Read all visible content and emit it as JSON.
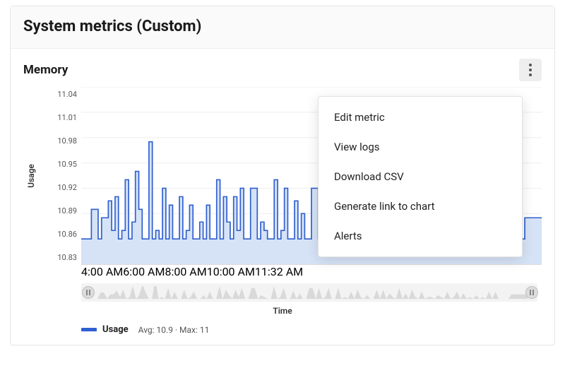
{
  "header": {
    "title": "System metrics (Custom)"
  },
  "panel": {
    "title": "Memory"
  },
  "menu": {
    "items": [
      "Edit metric",
      "View logs",
      "Download CSV",
      "Generate link to chart",
      "Alerts"
    ]
  },
  "chart": {
    "type": "line-area",
    "y_label": "Usage",
    "x_label": "Time",
    "ylim": [
      10.83,
      11.04
    ],
    "ytick_step": 0.03,
    "yticks": [
      "11.04",
      "11.01",
      "10.98",
      "10.95",
      "10.92",
      "10.89",
      "10.86",
      "10.83"
    ],
    "x_domain_hours": [
      3.5,
      11.533
    ],
    "xticks": [
      {
        "label": "4:00 AM",
        "hour": 4.0
      },
      {
        "label": "6:00 AM",
        "hour": 6.0
      },
      {
        "label": "8:00 AM",
        "hour": 8.0
      },
      {
        "label": "10:00 AM",
        "hour": 10.0
      },
      {
        "label": "11:32 AM",
        "hour": 11.533
      }
    ],
    "series_name": "Usage",
    "series_color": "#2f5fd0",
    "area_color": "#d6e3f6",
    "grid_color": "#eeeeee",
    "baseline_value": 10.86,
    "line_width": 1.6,
    "values": [
      10.86,
      10.86,
      10.86,
      10.895,
      10.895,
      10.86,
      10.885,
      10.885,
      10.905,
      10.87,
      10.91,
      10.86,
      10.87,
      10.93,
      10.86,
      10.88,
      10.94,
      10.895,
      10.86,
      10.86,
      10.975,
      10.86,
      10.87,
      10.86,
      10.92,
      10.86,
      10.9,
      10.86,
      10.86,
      10.91,
      10.86,
      10.87,
      10.9,
      10.86,
      10.86,
      10.88,
      10.86,
      10.9,
      10.86,
      10.86,
      10.93,
      10.86,
      10.91,
      10.88,
      10.86,
      10.91,
      10.87,
      10.92,
      10.86,
      10.86,
      10.92,
      10.92,
      10.86,
      10.88,
      10.87,
      10.86,
      10.86,
      10.93,
      10.86,
      10.87,
      10.92,
      10.86,
      10.86,
      10.905,
      10.86,
      10.89,
      10.86,
      10.86,
      10.92,
      10.92,
      10.86,
      10.92,
      10.86,
      10.87,
      10.92,
      10.86,
      10.86,
      10.92,
      10.86,
      10.87,
      10.86,
      10.9,
      10.86,
      10.91,
      10.87,
      10.86,
      10.88,
      10.86,
      10.86,
      10.91,
      10.86,
      10.91,
      10.86,
      10.89,
      10.87,
      10.86,
      10.92,
      10.86,
      10.89,
      10.86,
      10.91,
      10.87,
      10.86,
      10.9,
      10.86,
      10.87,
      10.87,
      10.86,
      10.88,
      10.87,
      10.86,
      10.9,
      10.86,
      10.87,
      10.9,
      10.86,
      10.89,
      10.86,
      10.87,
      10.86,
      10.88,
      10.86,
      10.87,
      10.86,
      10.9,
      10.86,
      10.9,
      10.86,
      10.86,
      10.86,
      10.86,
      10.885,
      10.885,
      10.885,
      10.885,
      10.885,
      10.885
    ],
    "legend_stats": "Avg: 10.9 · Max: 11"
  },
  "typography": {
    "header_fontsize": 22,
    "panel_title_fontsize": 17,
    "tick_fontsize": 11,
    "axis_label_fontsize": 12,
    "menu_item_fontsize": 15
  },
  "colors": {
    "card_border": "#e6e6e6",
    "header_bg": "#fafafa",
    "kebab_bg": "#eeeeee",
    "menu_border": "#e2e2e2",
    "scrub_bg": "#f3f3f3"
  }
}
